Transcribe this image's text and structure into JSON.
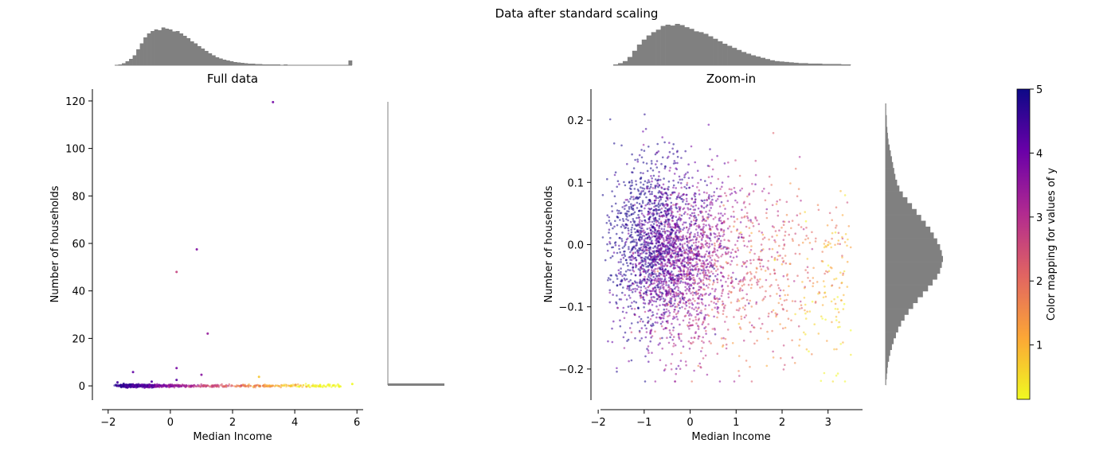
{
  "figure": {
    "suptitle": "Data after standard scaling"
  },
  "colors": {
    "histogram": "#808080",
    "colormap": [
      "#0d0887",
      "#6a00a8",
      "#b12a90",
      "#e16462",
      "#fca636",
      "#f0f921"
    ]
  },
  "chart_data": [
    {
      "type": "scatter",
      "panel": "full",
      "title": "Full data",
      "xlabel": "Median Income",
      "ylabel": "Number of households",
      "xlim": [
        -2.2,
        6.2
      ],
      "ylim": [
        -6,
        125
      ],
      "xticks": [
        -2,
        0,
        2,
        4,
        6
      ],
      "yticks": [
        0,
        20,
        40,
        60,
        80,
        100,
        120
      ],
      "xtick_labels": [
        "−2",
        "0",
        "2",
        "4",
        "6"
      ],
      "ytick_labels": [
        "0",
        "20",
        "40",
        "60",
        "80",
        "100",
        "120"
      ],
      "grid": false,
      "color_by": "y (target)",
      "outlier_points": [
        {
          "x": 3.3,
          "y": 119.5,
          "c": 1.1
        },
        {
          "x": 0.85,
          "y": 57.5,
          "c": 1.3
        },
        {
          "x": 0.2,
          "y": 48.0,
          "c": 2.4
        },
        {
          "x": 1.2,
          "y": 22.0,
          "c": 1.6
        },
        {
          "x": 0.2,
          "y": 7.5,
          "c": 1.2
        },
        {
          "x": 1.0,
          "y": 4.7,
          "c": 1.4
        },
        {
          "x": -1.2,
          "y": 5.8,
          "c": 0.9
        },
        {
          "x": 2.85,
          "y": 3.8,
          "c": 4.4
        },
        {
          "x": 0.2,
          "y": 2.5,
          "c": 0.8
        },
        {
          "x": -0.6,
          "y": 1.8,
          "c": 0.7
        },
        {
          "x": 5.85,
          "y": 0.8,
          "c": 5.0
        },
        {
          "x": -1.7,
          "y": 1.5,
          "c": 0.6
        }
      ],
      "bulk_band": {
        "x_range": [
          -1.8,
          5.9
        ],
        "y_range": [
          -0.3,
          0.3
        ]
      },
      "x_marginal_hist": [
        0.01,
        0.02,
        0.05,
        0.1,
        0.16,
        0.25,
        0.4,
        0.55,
        0.7,
        0.8,
        0.86,
        0.9,
        0.88,
        0.95,
        0.92,
        0.9,
        0.85,
        0.86,
        0.8,
        0.74,
        0.68,
        0.6,
        0.55,
        0.48,
        0.42,
        0.36,
        0.3,
        0.25,
        0.2,
        0.17,
        0.14,
        0.12,
        0.1,
        0.08,
        0.07,
        0.06,
        0.05,
        0.04,
        0.04,
        0.03,
        0.03,
        0.02,
        0.02,
        0.02,
        0.02,
        0.02,
        0.01,
        0.02,
        0.01,
        0.01,
        0.01,
        0.01,
        0.01,
        0.01,
        0.01,
        0.01,
        0.01,
        0.01,
        0.01,
        0.01,
        0.01,
        0.01,
        0.01,
        0.01,
        0.01,
        0.12
      ],
      "y_marginal_hist": "all mass near 0"
    },
    {
      "type": "scatter",
      "panel": "zoom",
      "title": "Zoom-in",
      "xlabel": "Median Income",
      "ylabel": "Number of households",
      "xlim": [
        -1.95,
        3.75
      ],
      "ylim": [
        -0.25,
        0.25
      ],
      "xticks": [
        -2,
        -1,
        0,
        1,
        2,
        3
      ],
      "yticks": [
        -0.2,
        -0.1,
        0.0,
        0.1,
        0.2
      ],
      "xtick_labels": [
        "−2",
        "−1",
        "0",
        "1",
        "2",
        "3"
      ],
      "ytick_labels": [
        "−0.2",
        "−0.1",
        "0.0",
        "0.1",
        "0.2"
      ],
      "grid": false,
      "color_by": "y (target)",
      "x_marginal_hist": [
        0.02,
        0.05,
        0.1,
        0.2,
        0.35,
        0.5,
        0.62,
        0.72,
        0.8,
        0.86,
        0.95,
        0.98,
        0.96,
        1.0,
        0.97,
        0.92,
        0.88,
        0.82,
        0.8,
        0.76,
        0.7,
        0.64,
        0.58,
        0.52,
        0.47,
        0.42,
        0.37,
        0.32,
        0.28,
        0.24,
        0.21,
        0.18,
        0.15,
        0.12,
        0.1,
        0.09,
        0.08,
        0.07,
        0.06,
        0.05,
        0.05,
        0.04,
        0.04,
        0.04,
        0.03,
        0.03,
        0.03,
        0.03,
        0.02,
        0.02
      ],
      "y_marginal_hist": [
        0.01,
        0.01,
        0.02,
        0.02,
        0.03,
        0.04,
        0.05,
        0.07,
        0.09,
        0.11,
        0.13,
        0.15,
        0.17,
        0.2,
        0.24,
        0.3,
        0.38,
        0.46,
        0.54,
        0.62,
        0.7,
        0.78,
        0.84,
        0.9,
        0.95,
        0.98,
        1.0,
        0.98,
        0.95,
        0.9,
        0.82,
        0.74,
        0.65,
        0.56,
        0.48,
        0.4,
        0.33,
        0.27,
        0.22,
        0.18,
        0.14,
        0.11,
        0.08,
        0.06,
        0.04,
        0.03,
        0.02,
        0.01
      ]
    },
    {
      "type": "colorbar",
      "label": "Color mapping for values of y",
      "range": [
        0.15,
        5
      ],
      "ticks": [
        1,
        2,
        3,
        4,
        5
      ],
      "tick_labels": [
        "1",
        "2",
        "3",
        "4",
        "5"
      ]
    }
  ]
}
